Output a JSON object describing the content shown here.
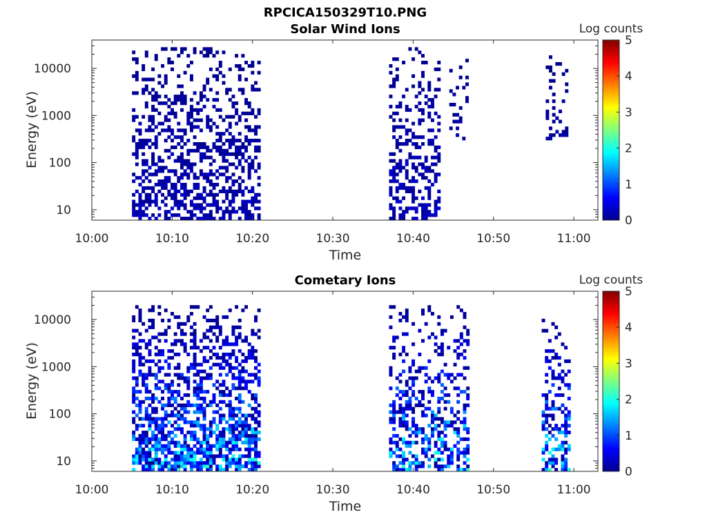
{
  "figure": {
    "title": "RPCICA150329T10.PNG"
  },
  "colormap": {
    "name": "jet",
    "stops": [
      "#00008f",
      "#0000ff",
      "#00ffff",
      "#ffff00",
      "#ff0000",
      "#800000"
    ]
  },
  "chart_data": [
    {
      "type": "heatmap",
      "title": "Solar Wind Ions",
      "xlabel": "Time",
      "ylabel": "Energy (eV)",
      "x_ticks": [
        "10:00",
        "10:10",
        "10:20",
        "10:30",
        "10:40",
        "10:50",
        "11:00"
      ],
      "xlim_minutes": [
        0,
        63
      ],
      "y_scale": "log",
      "y_ticks": [
        10,
        100,
        1000,
        10000
      ],
      "ylim": [
        6,
        40000
      ],
      "colorbar": {
        "label": "Log counts",
        "ticks": [
          0,
          1,
          2,
          3,
          4,
          5
        ],
        "range": [
          0,
          5
        ]
      },
      "bursts": [
        {
          "t_start": 5.0,
          "t_end": 20.8,
          "e_min": 6,
          "e_max": 28000,
          "log_counts": [
            0.0,
            0.4
          ],
          "density": 0.55
        },
        {
          "t_start": 37.0,
          "t_end": 43.3,
          "e_min": 6,
          "e_max": 28000,
          "log_counts": [
            0.0,
            0.5
          ],
          "density": 0.5
        },
        {
          "t_start": 44.5,
          "t_end": 46.5,
          "e_min": 300,
          "e_max": 15000,
          "log_counts": [
            0.0,
            0.2
          ],
          "density": 0.3
        },
        {
          "t_start": 56.5,
          "t_end": 59.2,
          "e_min": 300,
          "e_max": 20000,
          "log_counts": [
            0.0,
            0.2
          ],
          "density": 0.3
        }
      ]
    },
    {
      "type": "heatmap",
      "title": "Cometary Ions",
      "xlabel": "Time",
      "ylabel": "Energy (eV)",
      "x_ticks": [
        "10:00",
        "10:10",
        "10:20",
        "10:30",
        "10:40",
        "10:50",
        "11:00"
      ],
      "xlim_minutes": [
        0,
        63
      ],
      "y_scale": "log",
      "y_ticks": [
        10,
        100,
        1000,
        10000
      ],
      "ylim": [
        6,
        40000
      ],
      "colorbar": {
        "label": "Log counts",
        "ticks": [
          0,
          1,
          2,
          3,
          4,
          5
        ],
        "range": [
          0,
          5
        ]
      },
      "bursts": [
        {
          "t_start": 5.0,
          "t_end": 20.8,
          "e_min": 6,
          "e_max": 20000,
          "log_counts": [
            0.0,
            2.3
          ],
          "density": 0.75
        },
        {
          "t_start": 37.0,
          "t_end": 46.8,
          "e_min": 6,
          "e_max": 20000,
          "log_counts": [
            0.0,
            2.3
          ],
          "density": 0.55
        },
        {
          "t_start": 56.0,
          "t_end": 59.2,
          "e_min": 6,
          "e_max": 10000,
          "log_counts": [
            0.0,
            2.3
          ],
          "density": 0.6
        }
      ]
    }
  ]
}
